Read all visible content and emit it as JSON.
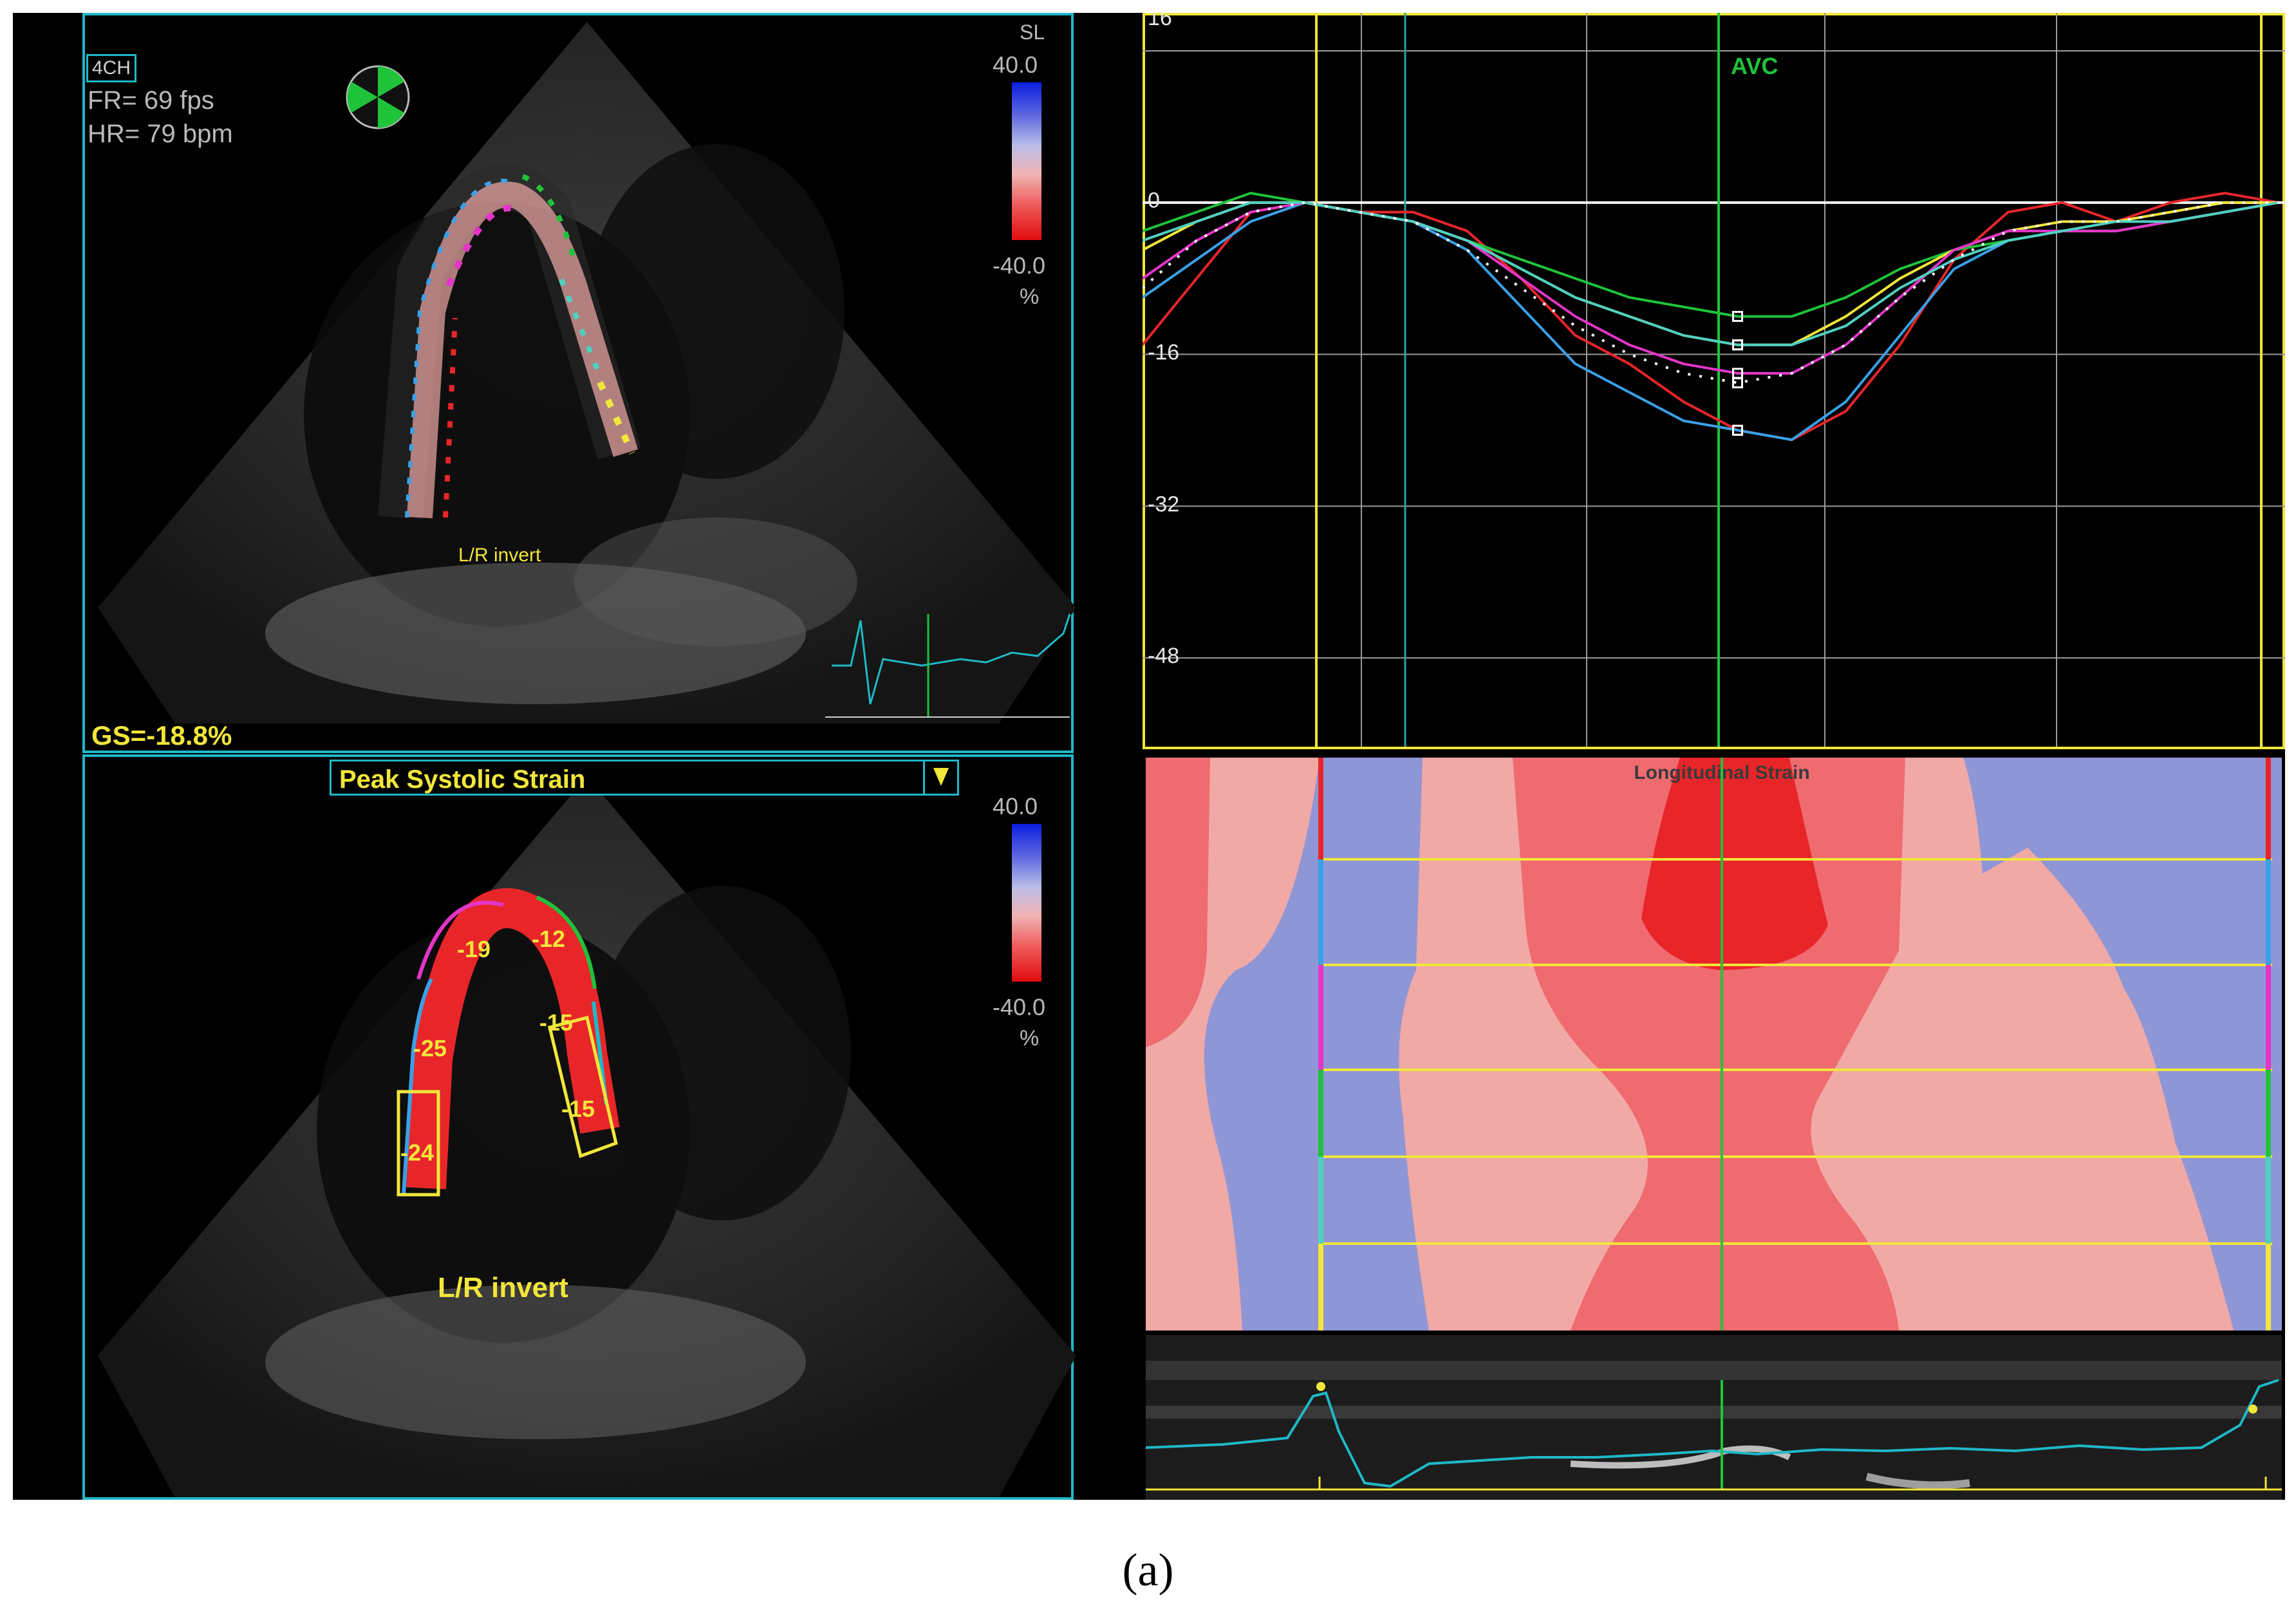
{
  "top_left_view": {
    "view_badge": "4CH",
    "frame_rate": "FR= 69 fps",
    "heart_rate": "HR= 79 bpm",
    "colorbar_header": "SL",
    "colorbar_max": "40.0",
    "colorbar_min": "-40.0",
    "colorbar_unit": "%",
    "orientation_note": "L/R invert",
    "global_strain": "GS=-18.8%"
  },
  "bottom_left_view": {
    "mode_select_label": "Peak Systolic Strain",
    "colorbar_max": "40.0",
    "colorbar_min": "-40.0",
    "colorbar_unit": "%",
    "orientation_note": "L/R invert",
    "segment_values": [
      "-19",
      "-12",
      "-25",
      "-15",
      "-24",
      "-15"
    ]
  },
  "strain_curve_chart": {
    "event_marker": "AVC",
    "y_tick_labels": [
      "16",
      "0",
      "-16",
      "-32",
      "-48"
    ]
  },
  "strain_map": {
    "title": "Longitudinal Strain"
  },
  "caption": "(a)",
  "colors": {
    "panel_border": "#1fb8c8",
    "annotation_yellow": "#f2e63a",
    "avc_green": "#1fc33a",
    "strain_red": "#e8262a",
    "strain_pink": "#f1a9a6",
    "strain_blue": "#8f96d6"
  },
  "chart_data": {
    "type": "line",
    "ylim": [
      -56,
      20
    ],
    "yticks": [
      16,
      0,
      -16,
      -32,
      -48
    ],
    "series": [
      {
        "color": "#e8262a",
        "values": [
          -15,
          -8,
          -1,
          0,
          -1,
          -1,
          -3,
          -8,
          -14,
          -17,
          -21,
          -24,
          -25,
          -22,
          -15,
          -6,
          -1,
          0,
          -2,
          0,
          1,
          0
        ]
      },
      {
        "color": "#3aa0e8",
        "values": [
          -10,
          -6,
          -2,
          0,
          -1,
          -2,
          -5,
          -11,
          -17,
          -20,
          -23,
          -24,
          -25,
          -21,
          -14,
          -7,
          -4,
          -3,
          -3,
          -2,
          -1,
          0
        ]
      },
      {
        "color": "#1fc33a",
        "values": [
          -3,
          -1,
          1,
          0,
          -1,
          -2,
          -4,
          -6,
          -8,
          -10,
          -11,
          -12,
          -12,
          -10,
          -7,
          -5,
          -4,
          -3,
          -3,
          -2,
          -1,
          0
        ]
      },
      {
        "color": "#f2e63a",
        "values": [
          -5,
          -2,
          0,
          0,
          -1,
          -2,
          -4,
          -7,
          -10,
          -12,
          -14,
          -15,
          -15,
          -12,
          -8,
          -5,
          -3,
          -2,
          -2,
          -1,
          0,
          0
        ]
      },
      {
        "color": "#e535c8",
        "values": [
          -8,
          -4,
          -1,
          0,
          -1,
          -2,
          -4,
          -8,
          -12,
          -15,
          -17,
          -18,
          -18,
          -15,
          -10,
          -5,
          -3,
          -3,
          -3,
          -2,
          -1,
          0
        ]
      },
      {
        "color": "#4fd0c0",
        "values": [
          -4,
          -2,
          0,
          0,
          -1,
          -2,
          -4,
          -7,
          -10,
          -12,
          -14,
          -15,
          -15,
          -13,
          -9,
          -6,
          -4,
          -3,
          -2,
          -2,
          -1,
          0
        ]
      },
      {
        "color": "#ffffff",
        "values": [
          -9,
          -4,
          -1,
          0,
          -1,
          -2,
          -5,
          -9,
          -13,
          -16,
          -18,
          -19,
          -18,
          -15,
          -10,
          -6,
          -3,
          -2,
          -2,
          -1,
          0,
          0
        ]
      }
    ]
  }
}
